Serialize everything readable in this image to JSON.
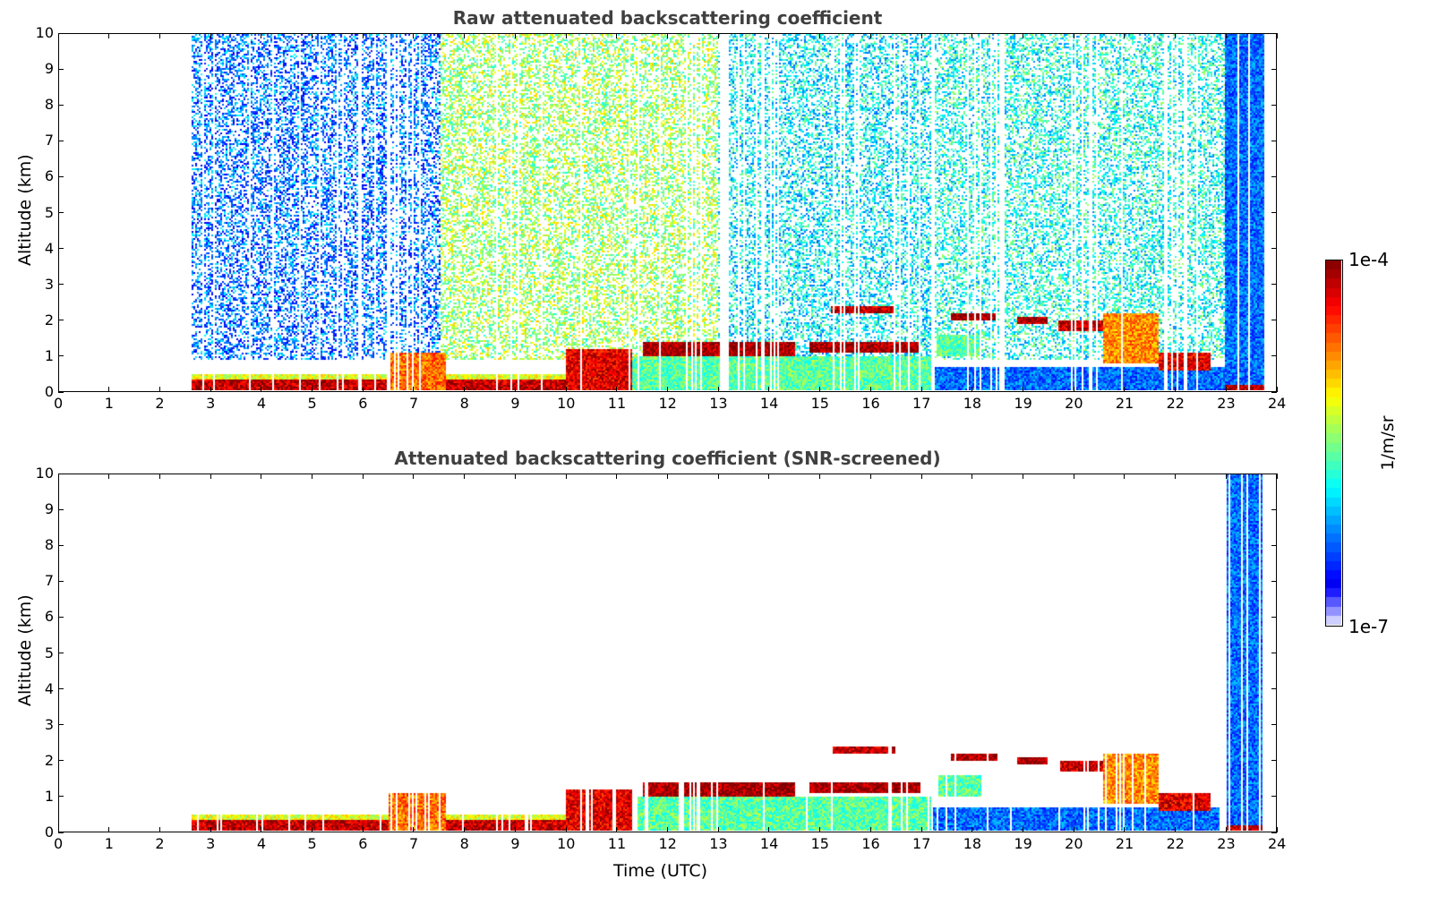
{
  "chart_data": [
    {
      "type": "heatmap",
      "title": "Raw attenuated backscattering coefficient",
      "mode": "raw",
      "xlabel": "",
      "ylabel": "Altitude (km)",
      "xlim": [
        0,
        24
      ],
      "ylim": [
        0,
        10
      ],
      "xticks": [
        0,
        1,
        2,
        3,
        4,
        5,
        6,
        7,
        8,
        9,
        10,
        11,
        12,
        13,
        14,
        15,
        16,
        17,
        18,
        19,
        20,
        21,
        22,
        23,
        24
      ],
      "yticks": [
        0,
        1,
        2,
        3,
        4,
        5,
        6,
        7,
        8,
        9,
        10
      ]
    },
    {
      "type": "heatmap",
      "title": "Attenuated backscattering coefficient (SNR-screened)",
      "mode": "screened",
      "xlabel": "Time (UTC)",
      "ylabel": "Altitude (km)",
      "xlim": [
        0,
        24
      ],
      "ylim": [
        0,
        10
      ],
      "xticks": [
        0,
        1,
        2,
        3,
        4,
        5,
        6,
        7,
        8,
        9,
        10,
        11,
        12,
        13,
        14,
        15,
        16,
        17,
        18,
        19,
        20,
        21,
        22,
        23,
        24
      ],
      "yticks": [
        0,
        1,
        2,
        3,
        4,
        5,
        6,
        7,
        8,
        9,
        10
      ]
    }
  ],
  "data_coverage_utc": [
    2.6,
    23.8
  ],
  "layers_log10": [
    {
      "t": [
        2.6,
        10.0
      ],
      "z": [
        0,
        0.35
      ],
      "v": -4.2
    },
    {
      "t": [
        2.6,
        10.0
      ],
      "z": [
        0.35,
        0.5
      ],
      "v": -5.2
    },
    {
      "t": [
        6.5,
        7.6
      ],
      "z": [
        0,
        1.1
      ],
      "v": -4.7
    },
    {
      "t": [
        10.0,
        11.3
      ],
      "z": [
        0,
        1.2
      ],
      "v": -4.3
    },
    {
      "t": [
        11.3,
        17.2
      ],
      "z": [
        0,
        1.0
      ],
      "v": -5.6
    },
    {
      "t": [
        11.5,
        14.5
      ],
      "z": [
        1.0,
        1.4
      ],
      "v": -4.1
    },
    {
      "t": [
        14.8,
        17.0
      ],
      "z": [
        1.1,
        1.4
      ],
      "v": -4.1
    },
    {
      "t": [
        15.2,
        16.5
      ],
      "z": [
        2.2,
        2.4
      ],
      "v": -4.2
    },
    {
      "t": [
        17.2,
        23.0
      ],
      "z": [
        0,
        0.7
      ],
      "v": -6.3
    },
    {
      "t": [
        17.3,
        18.2
      ],
      "z": [
        1.0,
        1.6
      ],
      "v": -5.6
    },
    {
      "t": [
        17.6,
        18.5
      ],
      "z": [
        2.0,
        2.2
      ],
      "v": -4.1
    },
    {
      "t": [
        18.9,
        19.5
      ],
      "z": [
        1.9,
        2.1
      ],
      "v": -4.1
    },
    {
      "t": [
        19.7,
        20.8
      ],
      "z": [
        1.7,
        2.0
      ],
      "v": -4.2
    },
    {
      "t": [
        20.6,
        21.7
      ],
      "z": [
        0.8,
        2.2
      ],
      "v": -4.8
    },
    {
      "t": [
        21.7,
        22.7
      ],
      "z": [
        0.6,
        1.1
      ],
      "v": -4.3
    },
    {
      "t": [
        23.0,
        23.8
      ],
      "z": [
        0,
        10
      ],
      "v": -6.3
    },
    {
      "t": [
        23.0,
        23.8
      ],
      "z": [
        0,
        0.2
      ],
      "v": -4.2
    }
  ],
  "noise_aloft_log10": [
    {
      "t": [
        2.6,
        7.5
      ],
      "v": -6.3
    },
    {
      "t": [
        7.5,
        13.0
      ],
      "v": -5.4
    },
    {
      "t": [
        13.0,
        17.2
      ],
      "v": -5.9
    },
    {
      "t": [
        17.2,
        23.0
      ],
      "v": -5.8
    }
  ],
  "colorbar": {
    "label": "1/m/sr",
    "max_label": "1e-4",
    "min_label": "1e-7",
    "range_log10": [
      -7,
      -4
    ]
  }
}
